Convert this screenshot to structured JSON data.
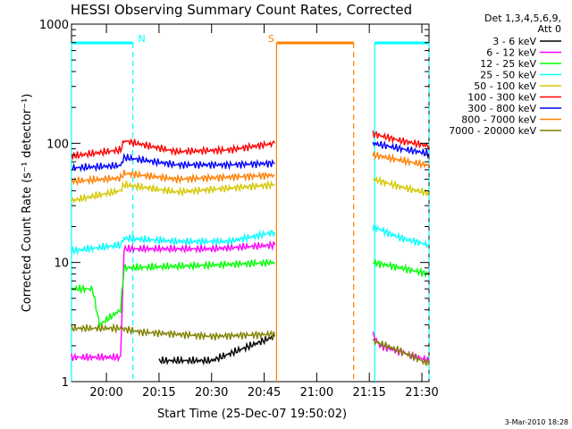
{
  "chart_data": {
    "type": "line",
    "title": "HESSI Observing Summary Count Rates, Corrected",
    "xlabel": "Start Time (25-Dec-07 19:50:02)",
    "ylabel": "Corrected Count Rate (s⁻¹ detector⁻¹)",
    "yscale": "log",
    "ylim": [
      1,
      1000
    ],
    "xlim_minutes_after_start": [
      0,
      102
    ],
    "x_ticks": [
      "20:00",
      "20:15",
      "20:30",
      "20:45",
      "21:00",
      "21:15",
      "21:30"
    ],
    "y_ticks": [
      "1",
      "10",
      "100",
      "1000"
    ],
    "legend_title_lines": [
      "Det 1,3,4,5,6,9,",
      "Att 0"
    ],
    "legend_position": "right",
    "footer": "3-Mar-2010 18:28",
    "flags": [
      {
        "label": "N",
        "color": "#00ffff",
        "start": 0,
        "end": 17.5
      },
      {
        "label": "",
        "color": "#00ffff",
        "start": 86.5,
        "end": 102
      },
      {
        "label": "S",
        "color": "#ff8000",
        "start": 58.5,
        "end": 80.5
      }
    ],
    "series": [
      {
        "name": "3 - 6 keV",
        "color": "#000000",
        "segments": [
          [
            [
              25,
              1.5
            ],
            [
              40,
              1.5
            ],
            [
              58,
              2.4
            ]
          ],
          [
            [
              86,
              1.0
            ]
          ]
        ]
      },
      {
        "name": "6 - 12 keV",
        "color": "#ff00ff",
        "segments": [
          [
            [
              0,
              1.6
            ],
            [
              14,
              1.6
            ],
            [
              15,
              13
            ],
            [
              40,
              13
            ],
            [
              58,
              14
            ]
          ],
          [
            [
              86,
              2.5
            ],
            [
              88,
              2.0
            ],
            [
              102,
              1.5
            ]
          ]
        ]
      },
      {
        "name": "12 - 25 keV",
        "color": "#00ff00",
        "segments": [
          [
            [
              0,
              6
            ],
            [
              6,
              6
            ],
            [
              8,
              3
            ],
            [
              14,
              4
            ],
            [
              15,
              9
            ],
            [
              40,
              9.5
            ],
            [
              58,
              10
            ]
          ],
          [
            [
              86,
              10
            ],
            [
              94,
              9
            ],
            [
              102,
              8
            ]
          ]
        ]
      },
      {
        "name": "25 - 50 keV",
        "color": "#00ffff",
        "segments": [
          [
            [
              0,
              12.5
            ],
            [
              14,
              14
            ],
            [
              15,
              16
            ],
            [
              30,
              15
            ],
            [
              45,
              15
            ],
            [
              58,
              18
            ]
          ],
          [
            [
              86,
              20
            ],
            [
              94,
              16
            ],
            [
              102,
              14
            ]
          ]
        ]
      },
      {
        "name": "50 - 100 keV",
        "color": "#d4c800",
        "segments": [
          [
            [
              0,
              33
            ],
            [
              14,
              40
            ],
            [
              15,
              45
            ],
            [
              30,
              39
            ],
            [
              45,
              42
            ],
            [
              58,
              45
            ]
          ],
          [
            [
              86,
              50
            ],
            [
              94,
              43
            ],
            [
              102,
              38
            ]
          ]
        ]
      },
      {
        "name": "100 - 300 keV",
        "color": "#ff0000",
        "segments": [
          [
            [
              0,
              78
            ],
            [
              14,
              88
            ],
            [
              15,
              105
            ],
            [
              30,
              85
            ],
            [
              45,
              88
            ],
            [
              58,
              100
            ]
          ],
          [
            [
              86,
              120
            ],
            [
              94,
              105
            ],
            [
              102,
              95
            ]
          ]
        ]
      },
      {
        "name": "300 - 800 keV",
        "color": "#0000ff",
        "segments": [
          [
            [
              0,
              62
            ],
            [
              14,
              65
            ],
            [
              15,
              76
            ],
            [
              30,
              66
            ],
            [
              45,
              66
            ],
            [
              58,
              68
            ]
          ],
          [
            [
              86,
              100
            ],
            [
              94,
              90
            ],
            [
              102,
              82
            ]
          ]
        ]
      },
      {
        "name": "800 - 7000 keV",
        "color": "#ff8000",
        "segments": [
          [
            [
              0,
              48
            ],
            [
              14,
              51
            ],
            [
              15,
              56
            ],
            [
              30,
              50
            ],
            [
              45,
              52
            ],
            [
              58,
              54
            ]
          ],
          [
            [
              86,
              80
            ],
            [
              94,
              72
            ],
            [
              102,
              65
            ]
          ]
        ]
      },
      {
        "name": "7000 - 20000 keV",
        "color": "#808000",
        "segments": [
          [
            [
              0,
              2.8
            ],
            [
              14,
              2.8
            ],
            [
              20,
              2.6
            ],
            [
              40,
              2.4
            ],
            [
              58,
              2.5
            ]
          ],
          [
            [
              86,
              2.2
            ],
            [
              94,
              1.8
            ],
            [
              102,
              1.4
            ]
          ]
        ]
      }
    ]
  }
}
